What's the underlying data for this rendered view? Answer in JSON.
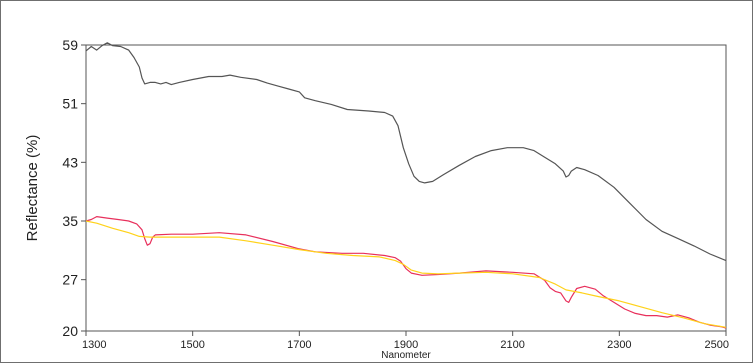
{
  "chart_data": {
    "type": "line",
    "title": "",
    "xlabel": "Nanometer",
    "ylabel": "Reflectance (%)",
    "xlim": [
      1300,
      2500
    ],
    "ylim": [
      20,
      59
    ],
    "x_ticks": [
      1300,
      1500,
      1700,
      1900,
      2100,
      2300,
      2500
    ],
    "y_ticks": [
      20,
      27,
      35,
      43,
      51,
      59
    ],
    "grid": false,
    "legend": "none",
    "series": [
      {
        "color": "#555555",
        "points": [
          [
            1300,
            58.2
          ],
          [
            1310,
            58.8
          ],
          [
            1320,
            58.3
          ],
          [
            1330,
            58.9
          ],
          [
            1340,
            59.3
          ],
          [
            1350,
            58.9
          ],
          [
            1365,
            58.8
          ],
          [
            1380,
            58.3
          ],
          [
            1390,
            57.3
          ],
          [
            1400,
            56
          ],
          [
            1405,
            54.5
          ],
          [
            1410,
            53.7
          ],
          [
            1420,
            53.9
          ],
          [
            1430,
            53.9
          ],
          [
            1440,
            53.7
          ],
          [
            1450,
            53.9
          ],
          [
            1460,
            53.6
          ],
          [
            1475,
            53.9
          ],
          [
            1500,
            54.3
          ],
          [
            1530,
            54.7
          ],
          [
            1555,
            54.7
          ],
          [
            1570,
            54.9
          ],
          [
            1590,
            54.6
          ],
          [
            1620,
            54.3
          ],
          [
            1640,
            53.8
          ],
          [
            1660,
            53.4
          ],
          [
            1680,
            53
          ],
          [
            1700,
            52.6
          ],
          [
            1710,
            51.8
          ],
          [
            1730,
            51.4
          ],
          [
            1760,
            50.9
          ],
          [
            1790,
            50.2
          ],
          [
            1830,
            50
          ],
          [
            1860,
            49.8
          ],
          [
            1875,
            49.3
          ],
          [
            1885,
            48
          ],
          [
            1895,
            45
          ],
          [
            1905,
            42.8
          ],
          [
            1915,
            41.1
          ],
          [
            1925,
            40.4
          ],
          [
            1935,
            40.2
          ],
          [
            1950,
            40.4
          ],
          [
            1970,
            41.3
          ],
          [
            2000,
            42.6
          ],
          [
            2030,
            43.8
          ],
          [
            2060,
            44.6
          ],
          [
            2090,
            45
          ],
          [
            2120,
            45
          ],
          [
            2140,
            44.6
          ],
          [
            2160,
            43.7
          ],
          [
            2180,
            42.8
          ],
          [
            2195,
            41.8
          ],
          [
            2200,
            41
          ],
          [
            2205,
            41.2
          ],
          [
            2210,
            41.8
          ],
          [
            2220,
            42.3
          ],
          [
            2235,
            42
          ],
          [
            2260,
            41.2
          ],
          [
            2290,
            39.6
          ],
          [
            2320,
            37.4
          ],
          [
            2350,
            35.2
          ],
          [
            2380,
            33.6
          ],
          [
            2410,
            32.6
          ],
          [
            2440,
            31.6
          ],
          [
            2470,
            30.5
          ],
          [
            2500,
            29.6
          ]
        ]
      },
      {
        "color": "#e8305c",
        "points": [
          [
            1300,
            35
          ],
          [
            1310,
            35.2
          ],
          [
            1320,
            35.6
          ],
          [
            1340,
            35.4
          ],
          [
            1360,
            35.2
          ],
          [
            1380,
            35
          ],
          [
            1395,
            34.6
          ],
          [
            1405,
            33.8
          ],
          [
            1410,
            32.6
          ],
          [
            1415,
            31.7
          ],
          [
            1420,
            31.9
          ],
          [
            1425,
            32.8
          ],
          [
            1430,
            33.1
          ],
          [
            1460,
            33.2
          ],
          [
            1500,
            33.2
          ],
          [
            1550,
            33.4
          ],
          [
            1600,
            33.1
          ],
          [
            1650,
            32.2
          ],
          [
            1700,
            31.2
          ],
          [
            1730,
            30.8
          ],
          [
            1780,
            30.6
          ],
          [
            1820,
            30.6
          ],
          [
            1860,
            30.3
          ],
          [
            1880,
            30
          ],
          [
            1890,
            29.5
          ],
          [
            1900,
            28.5
          ],
          [
            1910,
            27.9
          ],
          [
            1930,
            27.6
          ],
          [
            1960,
            27.7
          ],
          [
            2000,
            27.9
          ],
          [
            2050,
            28.2
          ],
          [
            2100,
            28
          ],
          [
            2140,
            27.8
          ],
          [
            2160,
            26.9
          ],
          [
            2170,
            25.9
          ],
          [
            2180,
            25.4
          ],
          [
            2190,
            25.2
          ],
          [
            2200,
            24.1
          ],
          [
            2205,
            23.9
          ],
          [
            2210,
            24.6
          ],
          [
            2220,
            25.8
          ],
          [
            2235,
            26.1
          ],
          [
            2255,
            25.7
          ],
          [
            2270,
            24.8
          ],
          [
            2290,
            23.9
          ],
          [
            2310,
            23
          ],
          [
            2330,
            22.4
          ],
          [
            2350,
            22.1
          ],
          [
            2370,
            22.1
          ],
          [
            2390,
            21.9
          ],
          [
            2410,
            22.2
          ],
          [
            2430,
            21.8
          ],
          [
            2450,
            21.2
          ],
          [
            2470,
            20.8
          ],
          [
            2490,
            20.6
          ],
          [
            2500,
            20.4
          ]
        ]
      },
      {
        "color": "#ffd21a",
        "points": [
          [
            1300,
            35
          ],
          [
            1320,
            34.7
          ],
          [
            1350,
            34
          ],
          [
            1380,
            33.4
          ],
          [
            1400,
            32.9
          ],
          [
            1420,
            32.8
          ],
          [
            1450,
            32.8
          ],
          [
            1500,
            32.8
          ],
          [
            1550,
            32.8
          ],
          [
            1600,
            32.3
          ],
          [
            1650,
            31.7
          ],
          [
            1700,
            31.1
          ],
          [
            1750,
            30.6
          ],
          [
            1800,
            30.3
          ],
          [
            1850,
            30.1
          ],
          [
            1880,
            29.6
          ],
          [
            1895,
            29.1
          ],
          [
            1910,
            28.3
          ],
          [
            1930,
            27.9
          ],
          [
            1960,
            27.8
          ],
          [
            2000,
            27.9
          ],
          [
            2050,
            28
          ],
          [
            2100,
            27.8
          ],
          [
            2150,
            27.3
          ],
          [
            2180,
            26.4
          ],
          [
            2200,
            25.6
          ],
          [
            2230,
            25.2
          ],
          [
            2260,
            24.7
          ],
          [
            2300,
            24.1
          ],
          [
            2340,
            23.3
          ],
          [
            2380,
            22.5
          ],
          [
            2420,
            21.8
          ],
          [
            2460,
            21
          ],
          [
            2500,
            20.5
          ]
        ]
      }
    ]
  }
}
